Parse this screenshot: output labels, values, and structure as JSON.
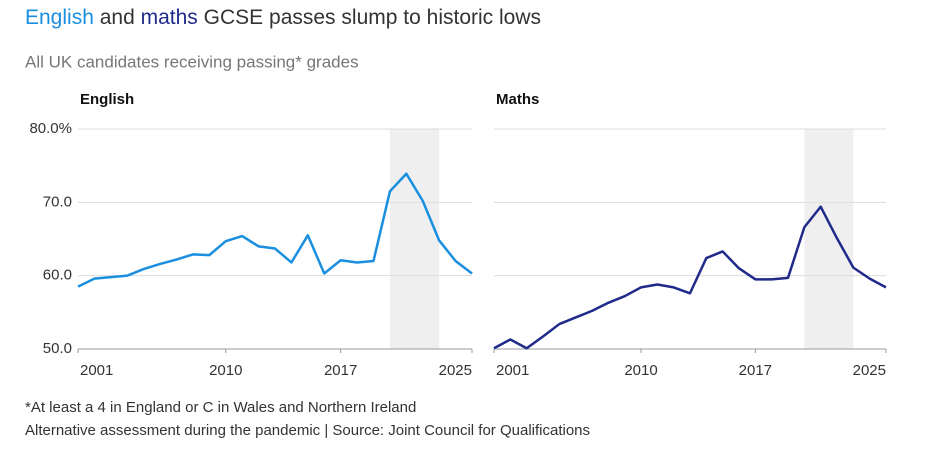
{
  "header": {
    "title": "English and maths GCSE passes slump to historic lows",
    "subtitle": "All UK candidates receiving passing* grades"
  },
  "footer": [
    "*At least a 4 in England or C in Wales and Northern Ireland",
    "Alternative assessment during the pandemic | Source: Joint Council for Qualifications"
  ],
  "chart_data": [
    {
      "type": "line",
      "title": "English",
      "x": [
        2001,
        2002,
        2003,
        2004,
        2005,
        2006,
        2007,
        2008,
        2009,
        2010,
        2011,
        2012,
        2013,
        2014,
        2015,
        2016,
        2017,
        2018,
        2019,
        2020,
        2021,
        2022,
        2023,
        2024,
        2025
      ],
      "series": [
        {
          "color": "#1a8fe0",
          "values": [
            58.5,
            59.6,
            59.8,
            60.0,
            60.9,
            61.6,
            62.2,
            62.9,
            62.8,
            64.7,
            65.4,
            64.0,
            63.7,
            61.8,
            65.5,
            60.3,
            62.1,
            61.8,
            62.0,
            71.5,
            73.9,
            70.2,
            64.8,
            62.0,
            60.3
          ]
        }
      ],
      "xlim": [
        2001,
        2025
      ],
      "xticks": [
        2001,
        2010,
        2017,
        2025
      ],
      "ylim": [
        50,
        80
      ],
      "yticks": [
        {
          "value": 50,
          "label": "50.0"
        },
        {
          "value": 60,
          "label": "60.0"
        },
        {
          "value": 70,
          "label": "70.0"
        },
        {
          "value": 80,
          "label": "80.0%"
        }
      ],
      "shade": [
        2020,
        2023
      ],
      "shade_color": "#efefef",
      "grid": true
    },
    {
      "type": "line",
      "title": "Maths",
      "x": [
        2001,
        2002,
        2003,
        2004,
        2005,
        2006,
        2007,
        2008,
        2009,
        2010,
        2011,
        2012,
        2013,
        2014,
        2015,
        2016,
        2017,
        2018,
        2019,
        2020,
        2021,
        2022,
        2023,
        2024,
        2025
      ],
      "series": [
        {
          "color": "#1f2a8a",
          "values": [
            50.1,
            51.3,
            50.1,
            51.7,
            53.4,
            54.3,
            55.2,
            56.3,
            57.2,
            58.4,
            58.8,
            58.4,
            57.6,
            62.4,
            63.3,
            61.0,
            59.5,
            59.5,
            59.7,
            66.6,
            69.4,
            65.1,
            61.1,
            59.6,
            58.4
          ]
        }
      ],
      "xlim": [
        2001,
        2025
      ],
      "xticks": [
        2001,
        2010,
        2017,
        2025
      ],
      "ylim": [
        50,
        80
      ],
      "yticks": [
        50,
        60,
        70,
        80
      ],
      "shade": [
        2020,
        2023
      ],
      "shade_color": "#efefef",
      "grid": true
    }
  ]
}
